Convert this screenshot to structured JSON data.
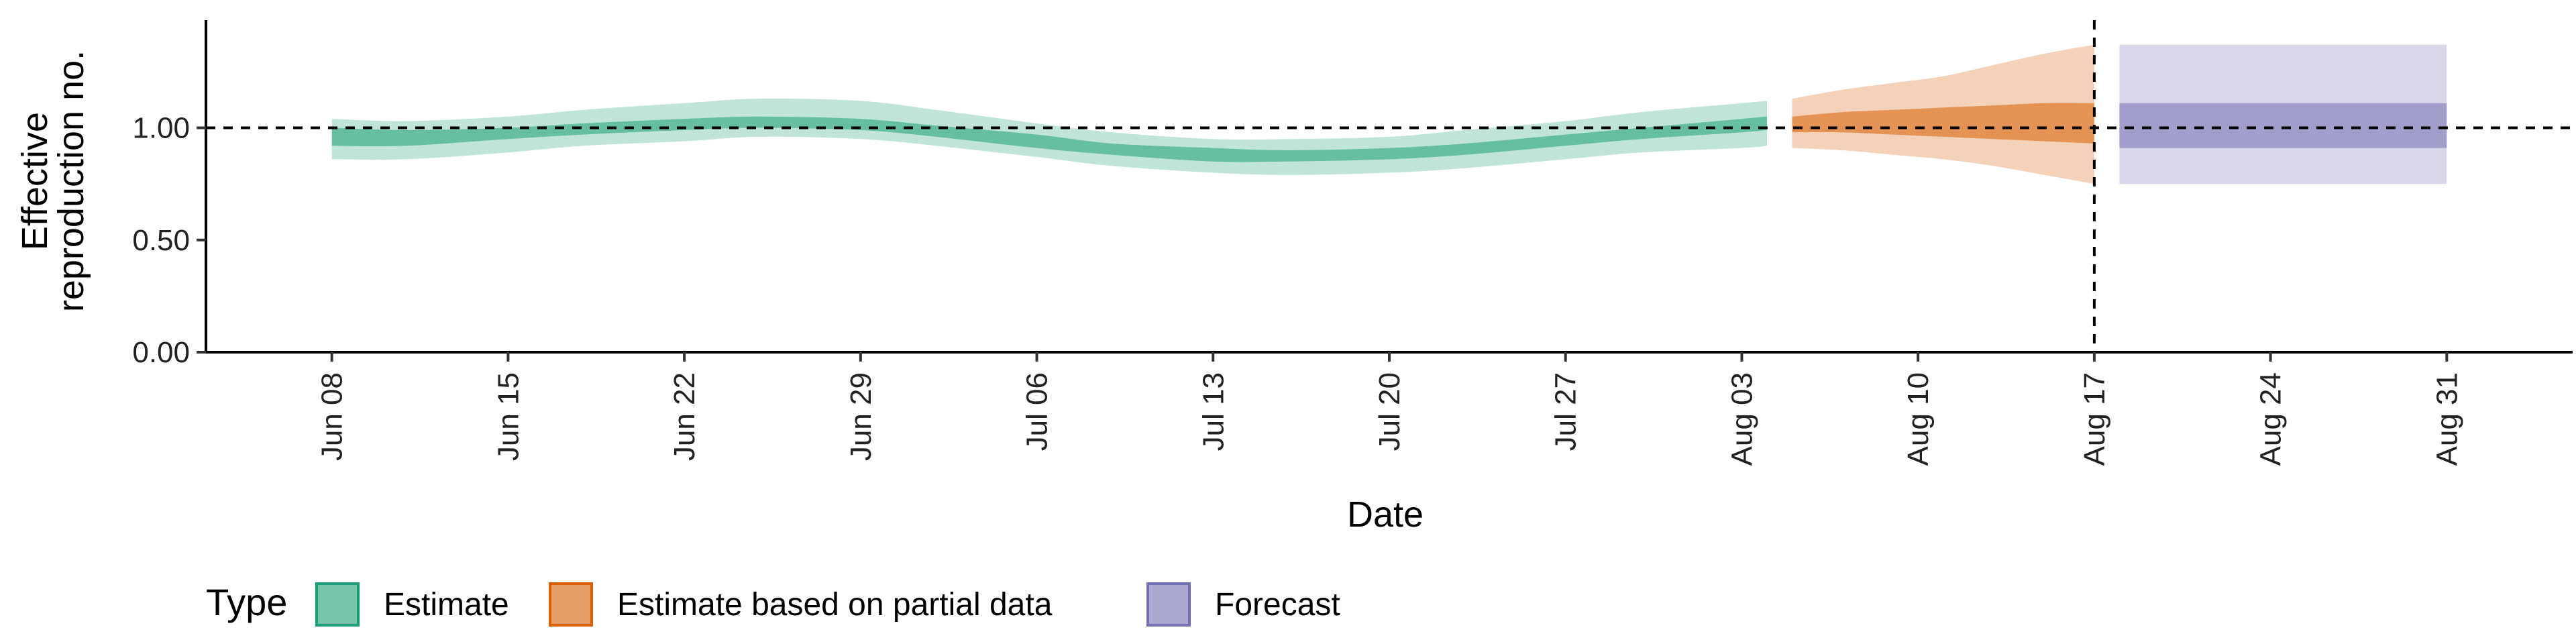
{
  "chart_data": {
    "type": "area",
    "xlabel": "Date",
    "ylabel": [
      "Effective",
      "reproduction no."
    ],
    "ylim": [
      0,
      1.48
    ],
    "y_ticks": [
      0.0,
      0.5,
      1.0
    ],
    "y_tick_labels": [
      "0.00",
      "0.50",
      "1.00"
    ],
    "x_range": [
      "2020-06-03",
      "2020-09-05"
    ],
    "x_ticks": [
      "2020-06-08",
      "2020-06-15",
      "2020-06-22",
      "2020-06-29",
      "2020-07-06",
      "2020-07-13",
      "2020-07-20",
      "2020-07-27",
      "2020-08-03",
      "2020-08-10",
      "2020-08-17",
      "2020-08-24",
      "2020-08-31"
    ],
    "x_tick_labels": [
      "Jun 08",
      "Jun 15",
      "Jun 22",
      "Jun 29",
      "Jul 06",
      "Jul 13",
      "Jul 20",
      "Jul 27",
      "Aug 03",
      "Aug 10",
      "Aug 17",
      "Aug 24",
      "Aug 31"
    ],
    "reference_line_y": 1.0,
    "vertical_line_x": "2020-08-17",
    "grid": false,
    "legend": {
      "title": "Type",
      "position": "bottom",
      "items": [
        {
          "label": "Estimate",
          "color": "#1b9e77"
        },
        {
          "label": "Estimate based on partial data",
          "color": "#d95f02"
        },
        {
          "label": "Forecast",
          "color": "#7570b3"
        }
      ]
    },
    "series": [
      {
        "name": "Estimate",
        "color": "#1b9e77",
        "x": [
          "2020-06-08",
          "2020-06-11",
          "2020-06-15",
          "2020-06-18",
          "2020-06-22",
          "2020-06-25",
          "2020-06-29",
          "2020-07-02",
          "2020-07-06",
          "2020-07-09",
          "2020-07-13",
          "2020-07-16",
          "2020-07-20",
          "2020-07-23",
          "2020-07-27",
          "2020-07-30",
          "2020-08-03",
          "2020-08-04"
        ],
        "outer_lower": [
          0.86,
          0.86,
          0.89,
          0.92,
          0.94,
          0.96,
          0.95,
          0.92,
          0.87,
          0.83,
          0.8,
          0.79,
          0.8,
          0.82,
          0.86,
          0.89,
          0.91,
          0.92
        ],
        "outer_upper": [
          1.04,
          1.03,
          1.05,
          1.08,
          1.11,
          1.13,
          1.12,
          1.08,
          1.02,
          0.98,
          0.95,
          0.95,
          0.96,
          0.99,
          1.03,
          1.07,
          1.11,
          1.12
        ],
        "inner_lower": [
          0.92,
          0.92,
          0.95,
          0.97,
          0.99,
          1.0,
          0.99,
          0.96,
          0.91,
          0.88,
          0.85,
          0.85,
          0.86,
          0.88,
          0.92,
          0.95,
          0.98,
          0.99
        ],
        "inner_upper": [
          1.0,
          0.99,
          1.0,
          1.02,
          1.04,
          1.05,
          1.04,
          1.01,
          0.97,
          0.93,
          0.91,
          0.9,
          0.91,
          0.93,
          0.97,
          1.0,
          1.04,
          1.05
        ]
      },
      {
        "name": "Estimate based on partial data",
        "color": "#d95f02",
        "x": [
          "2020-08-05",
          "2020-08-07",
          "2020-08-09",
          "2020-08-11",
          "2020-08-13",
          "2020-08-15",
          "2020-08-17"
        ],
        "outer_lower": [
          0.91,
          0.9,
          0.88,
          0.86,
          0.83,
          0.79,
          0.75
        ],
        "outer_upper": [
          1.13,
          1.17,
          1.2,
          1.23,
          1.28,
          1.33,
          1.37
        ],
        "inner_lower": [
          0.98,
          0.98,
          0.97,
          0.96,
          0.95,
          0.94,
          0.93
        ],
        "inner_upper": [
          1.05,
          1.07,
          1.08,
          1.09,
          1.1,
          1.11,
          1.11
        ]
      },
      {
        "name": "Forecast",
        "color": "#7570b3",
        "x": [
          "2020-08-18",
          "2020-08-31"
        ],
        "outer_lower": [
          0.75,
          0.75
        ],
        "outer_upper": [
          1.37,
          1.37
        ],
        "inner_lower": [
          0.91,
          0.91
        ],
        "inner_upper": [
          1.11,
          1.11
        ]
      }
    ]
  }
}
